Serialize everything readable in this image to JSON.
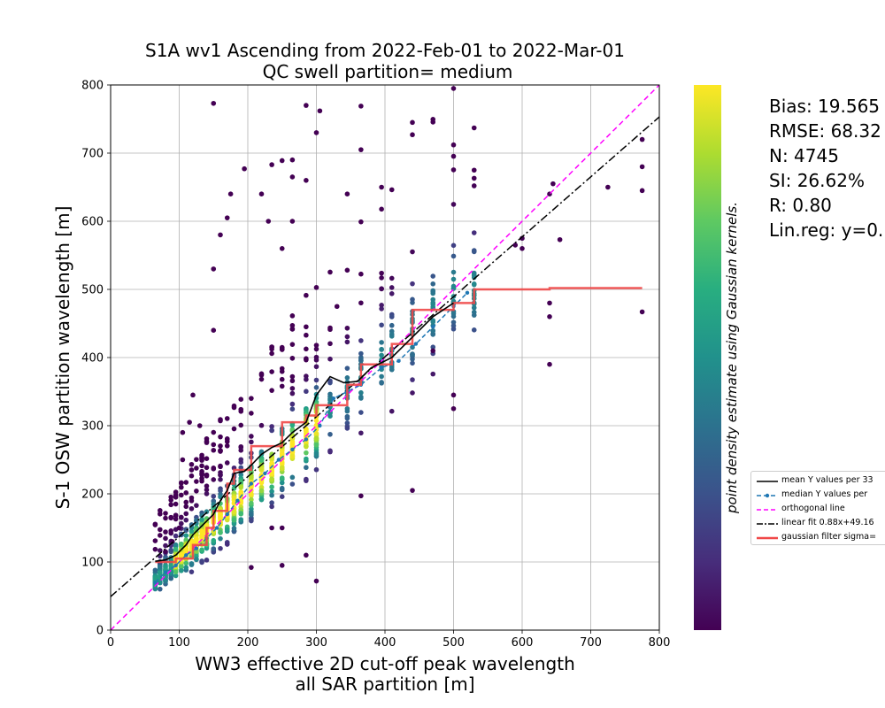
{
  "title": "S1A wv1 Ascending from 2022-Feb-01 to 2022-Mar-01",
  "subtitle": "QC swell partition= medium",
  "chart_data": {
    "type": "scatter",
    "xlabel_line1": "WW3 effective 2D cut-off peak wavelength",
    "xlabel_line2": "all SAR partition [m]",
    "ylabel": "S-1 OSW partition wavelength [m]",
    "xlim": [
      0,
      800
    ],
    "ylim": [
      0,
      800
    ],
    "xticks": [
      0,
      100,
      200,
      300,
      400,
      500,
      600,
      700,
      800
    ],
    "yticks": [
      0,
      100,
      200,
      300,
      400,
      500,
      600,
      700,
      800
    ],
    "grid": true,
    "colorbar_label": "point density estimate using Gaussian kernels.",
    "colormap": "viridis",
    "stats": [
      "Bias: 19.565",
      "RMSE: 68.32",
      "N: 4745",
      "SI: 26.62%",
      "R: 0.80",
      "Lin.reg: y=0."
    ],
    "legend": [
      {
        "label": "mean Y values per 33",
        "color": "#000000",
        "style": "solid"
      },
      {
        "label": "median Y values per",
        "color": "#1f77b4",
        "style": "dashed-dot-marker"
      },
      {
        "label": "orthogonal line",
        "color": "#ff00ff",
        "style": "dashed"
      },
      {
        "label": "linear fit 0.88x+49.16",
        "color": "#000000",
        "style": "dashdot"
      },
      {
        "label": "gaussian filter sigma=",
        "color": "#f04848",
        "style": "thick"
      }
    ],
    "orthogonal_line": {
      "x": [
        0,
        800
      ],
      "y": [
        0,
        800
      ],
      "color": "#ff00ff"
    },
    "linear_fit": {
      "slope": 0.88,
      "intercept": 49.16,
      "x": [
        0,
        800
      ],
      "color": "#000000"
    },
    "mean_line": {
      "color": "#000000",
      "x": [
        65,
        80,
        95,
        110,
        120,
        130,
        140,
        150,
        160,
        170,
        180,
        195,
        205,
        220,
        235,
        250,
        265,
        285,
        300,
        320,
        340,
        360,
        380,
        410,
        440,
        470,
        500
      ],
      "y": [
        101,
        103,
        110,
        125,
        140,
        150,
        160,
        170,
        190,
        205,
        230,
        233,
        242,
        258,
        268,
        275,
        290,
        305,
        345,
        372,
        363,
        365,
        385,
        400,
        430,
        460,
        480
      ]
    },
    "median_line": {
      "color": "#1f77b4",
      "x": [
        65,
        80,
        95,
        110,
        125,
        140,
        155,
        170,
        185,
        205,
        225,
        245,
        265,
        285,
        305,
        325,
        345,
        365,
        395,
        420,
        445,
        470,
        500,
        520
      ],
      "y": [
        70,
        85,
        95,
        110,
        120,
        135,
        150,
        170,
        190,
        215,
        230,
        250,
        265,
        280,
        300,
        340,
        350,
        360,
        385,
        395,
        420,
        445,
        475,
        495
      ]
    },
    "gaussian_step": {
      "color": "#f04848",
      "x": [
        65,
        95,
        95,
        120,
        120,
        140,
        140,
        150,
        150,
        170,
        170,
        180,
        180,
        205,
        205,
        250,
        250,
        285,
        285,
        300,
        300,
        345,
        345,
        365,
        365,
        410,
        410,
        440,
        440,
        500,
        500,
        530,
        530,
        640,
        640,
        775
      ],
      "y": [
        100,
        100,
        105,
        105,
        125,
        125,
        150,
        150,
        175,
        175,
        215,
        215,
        235,
        235,
        270,
        270,
        305,
        305,
        315,
        315,
        330,
        330,
        360,
        360,
        390,
        390,
        420,
        420,
        470,
        470,
        480,
        480,
        500,
        500,
        502,
        502
      ]
    },
    "column_x": [
      65,
      72,
      80,
      88,
      95,
      103,
      110,
      118,
      125,
      133,
      140,
      150,
      160,
      170,
      180,
      190,
      205,
      220,
      235,
      250,
      265,
      285,
      300,
      320,
      345,
      365,
      395,
      410,
      440,
      470,
      500,
      530
    ],
    "outliers": [
      [
        150,
        773
      ],
      [
        285,
        770
      ],
      [
        305,
        762
      ],
      [
        365,
        769
      ],
      [
        440,
        727
      ],
      [
        530,
        737
      ],
      [
        195,
        677
      ],
      [
        235,
        683
      ],
      [
        250,
        689
      ],
      [
        285,
        660
      ],
      [
        300,
        730
      ],
      [
        345,
        640
      ],
      [
        365,
        705
      ],
      [
        440,
        745
      ],
      [
        530,
        675
      ],
      [
        640,
        640
      ],
      [
        645,
        655
      ],
      [
        655,
        573
      ],
      [
        725,
        650
      ],
      [
        775,
        720
      ],
      [
        775,
        680
      ],
      [
        775,
        645
      ],
      [
        775,
        467
      ],
      [
        640,
        390
      ],
      [
        500,
        325
      ],
      [
        500,
        345
      ],
      [
        440,
        205
      ],
      [
        365,
        197
      ],
      [
        300,
        72
      ],
      [
        285,
        110
      ],
      [
        250,
        95
      ],
      [
        205,
        92
      ],
      [
        250,
        150
      ],
      [
        235,
        150
      ],
      [
        590,
        565
      ],
      [
        600,
        575
      ],
      [
        600,
        560
      ],
      [
        640,
        480
      ],
      [
        640,
        460
      ],
      [
        470,
        410
      ],
      [
        160,
        580
      ],
      [
        170,
        605
      ],
      [
        175,
        640
      ],
      [
        220,
        640
      ],
      [
        230,
        600
      ],
      [
        265,
        600
      ],
      [
        265,
        690
      ],
      [
        265,
        665
      ],
      [
        250,
        560
      ],
      [
        330,
        475
      ],
      [
        150,
        530
      ],
      [
        150,
        440
      ],
      [
        120,
        345
      ],
      [
        130,
        300
      ],
      [
        115,
        305
      ],
      [
        105,
        290
      ],
      [
        105,
        250
      ],
      [
        95,
        185
      ],
      [
        100,
        150
      ],
      [
        90,
        130
      ],
      [
        80,
        115
      ]
    ]
  }
}
